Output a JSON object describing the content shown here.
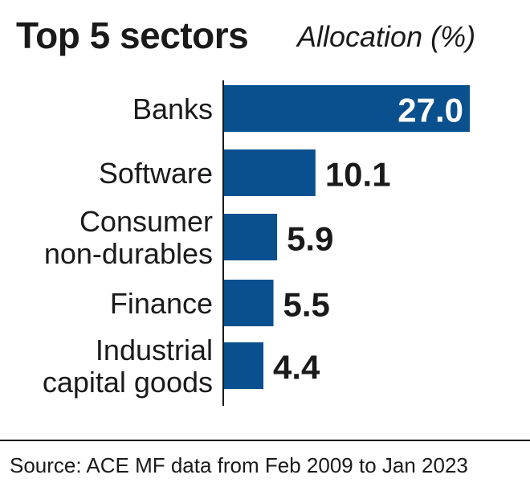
{
  "title": "Top 5 sectors",
  "subtitle": "Allocation (%)",
  "source": "Source: ACE MF data from Feb 2009 to Jan 2023",
  "colors": {
    "bar": "#0a4f8e",
    "inside_label": "#ffffff",
    "text": "#1a1a1a"
  },
  "chart_data": {
    "type": "bar",
    "orientation": "horizontal",
    "title": "Top 5 sectors",
    "subtitle": "Allocation (%)",
    "categories": [
      [
        "Banks"
      ],
      [
        "Software"
      ],
      [
        "Consumer",
        "non-durables"
      ],
      [
        "Finance"
      ],
      [
        "Industrial",
        "capital goods"
      ]
    ],
    "values": [
      27.0,
      10.1,
      5.9,
      5.5,
      4.4
    ],
    "value_labels": [
      "27.0",
      "10.1",
      "5.9",
      "5.5",
      "4.4"
    ],
    "grid": false,
    "legend": "none"
  }
}
